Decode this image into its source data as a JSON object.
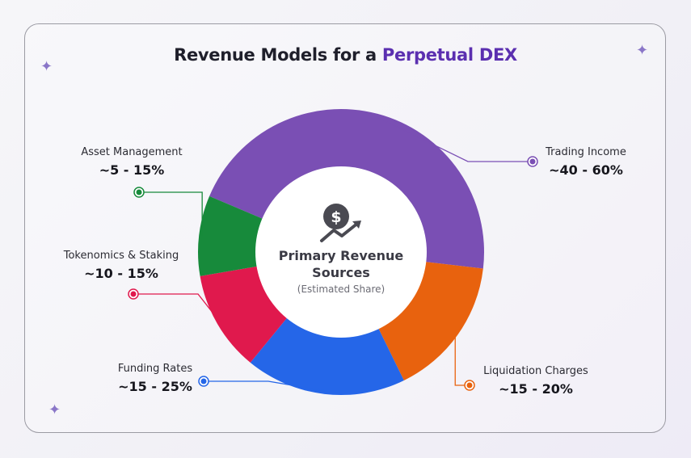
{
  "header": {
    "title_prefix": "Revenue Models for a ",
    "title_accent": "Perpetual DEX"
  },
  "center": {
    "line1": "Primary Revenue",
    "line2": "Sources",
    "sub": "(Estimated Share)",
    "icon": "dollar-growth-icon"
  },
  "chart_data": {
    "type": "pie",
    "donut": true,
    "title": "Revenue Models for a Perpetual DEX",
    "legend": "callout-labels",
    "slices": [
      {
        "name": "Trading Income",
        "label": "~40 - 60%",
        "value": 50,
        "color": "#7a4fb4"
      },
      {
        "name": "Liquidation Charges",
        "label": "~15 - 20%",
        "value": 17.5,
        "color": "#e8620e"
      },
      {
        "name": "Funding Rates",
        "label": "~15 - 25%",
        "value": 20,
        "color": "#2566e8"
      },
      {
        "name": "Tokenomics & Staking",
        "label": "~10 - 15%",
        "value": 12.5,
        "color": "#e0194d"
      },
      {
        "name": "Asset Management",
        "label": "~5 - 15%",
        "value": 10,
        "color": "#178a3b"
      }
    ]
  }
}
